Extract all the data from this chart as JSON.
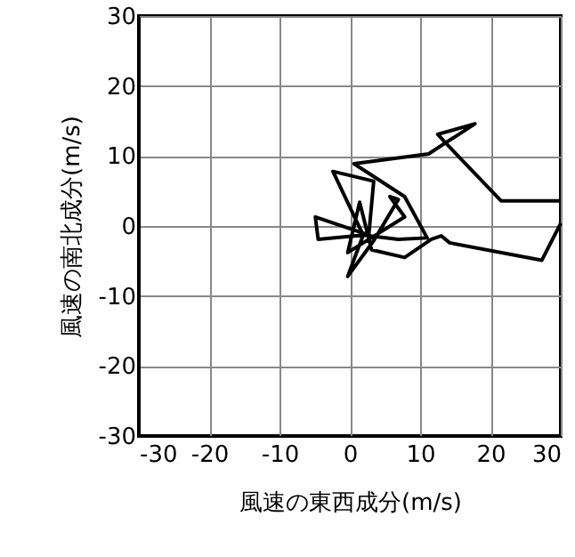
{
  "chart_data": {
    "type": "line",
    "xlabel": "風速の東西成分(m/s)",
    "ylabel": "風速の南北成分(m/s)",
    "xlim": [
      -30,
      30
    ],
    "ylim": [
      -30,
      30
    ],
    "xticks": [
      -30,
      -20,
      -10,
      0,
      10,
      20,
      30
    ],
    "yticks": [
      -30,
      -20,
      -10,
      0,
      10,
      20,
      30
    ],
    "grid": true,
    "marker": "none",
    "line_style": "solid",
    "series": [
      {
        "color": "#000000",
        "x": [
          29.8,
          21.5,
          13.6,
          12.5,
          17.8,
          11.2,
          0.6,
          7.8,
          11.0,
          6.9,
          1.9,
          -2.4,
          3.4,
          2.7,
          -4.9,
          -4.5,
          1.9,
          -0.3,
          3.4,
          6.9,
          5.7,
          7.8,
          -0.3,
          1.4,
          3.1,
          7.8,
          11.6,
          13.0,
          14.2,
          27.3,
          30.0
        ],
        "values": [
          3.6,
          3.6,
          11.9,
          13.1,
          14.6,
          10.3,
          8.9,
          4.2,
          -1.7,
          -1.9,
          -1.3,
          7.8,
          6.4,
          -1.3,
          1.3,
          -1.9,
          -1.3,
          -7.2,
          -2.1,
          3.8,
          4.2,
          1.3,
          -3.8,
          3.4,
          -3.4,
          -4.5,
          -1.9,
          -1.4,
          -2.4,
          -4.9,
          0.4
        ]
      }
    ]
  }
}
